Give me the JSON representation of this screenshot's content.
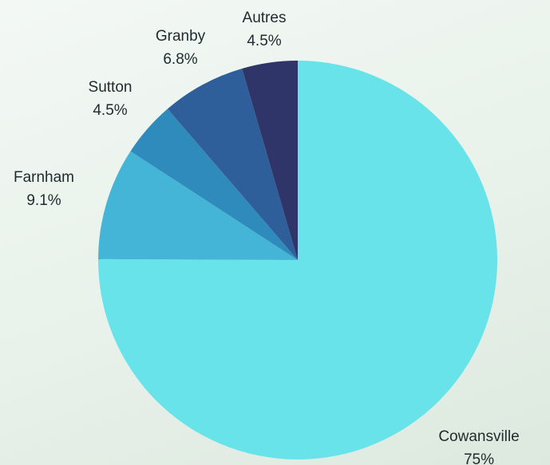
{
  "chart_data": {
    "type": "pie",
    "title": "",
    "start": "top, clockwise",
    "slices": [
      {
        "name": "Cowansville",
        "label": "75%",
        "value": 75,
        "color": "#67e3e9"
      },
      {
        "name": "Farnham",
        "label": "9.1%",
        "value": 9.1,
        "color": "#44b5d6"
      },
      {
        "name": "Sutton",
        "label": "4.5%",
        "value": 4.5,
        "color": "#2e8bbc"
      },
      {
        "name": "Granby",
        "label": "6.8%",
        "value": 6.8,
        "color": "#2e5f9a"
      },
      {
        "name": "Autres",
        "label": "4.5%",
        "value": 4.5,
        "color": "#2f3469"
      }
    ]
  }
}
